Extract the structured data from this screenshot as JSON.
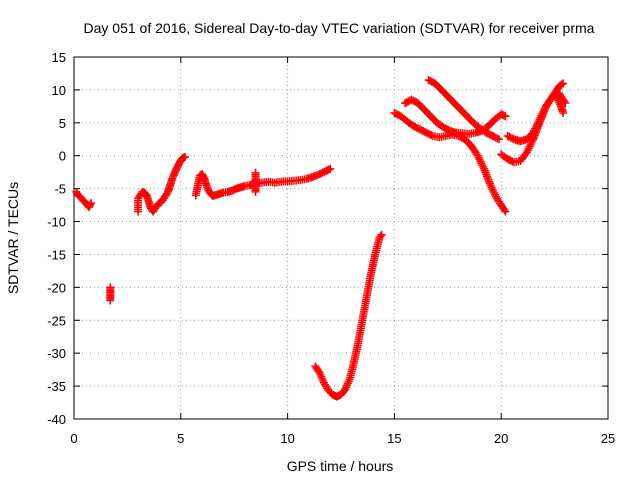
{
  "chart_data": {
    "type": "scatter",
    "title": "Day 051 of 2016, Sidereal Day-to-day VTEC variation (SDTVAR) for receiver prma",
    "xlabel": "GPS time / hours",
    "ylabel": "SDTVAR / TECUs",
    "xlim": [
      0,
      25
    ],
    "ylim": [
      -40,
      15
    ],
    "x_ticks": [
      0,
      5,
      10,
      15,
      20,
      25
    ],
    "y_ticks": [
      15,
      10,
      5,
      0,
      -5,
      -10,
      -15,
      -20,
      -25,
      -30,
      -35,
      -40
    ],
    "x_tick_labels": [
      "0",
      "5",
      "10",
      "15",
      "20",
      "25"
    ],
    "y_tick_labels": [
      "15",
      "10",
      "5",
      "0",
      "-5",
      "-10",
      "-15",
      "-20",
      "-25",
      "-30",
      "-35",
      "-40"
    ],
    "grid": true,
    "marker": "+",
    "color": "#ff0000",
    "series": [
      {
        "x": [
          0.1,
          0.2,
          0.3,
          0.4,
          0.5,
          0.6,
          0.7,
          0.8
        ],
        "y": [
          -5.5,
          -6.0,
          -6.3,
          -6.7,
          -7.0,
          -7.4,
          -7.8,
          -7.2
        ]
      },
      {
        "x": [
          1.7,
          1.7,
          1.7,
          1.7,
          1.7
        ],
        "y": [
          -20.0,
          -20.5,
          -21.0,
          -21.5,
          -22.0
        ]
      },
      {
        "x": [
          3.0,
          3.0,
          3.0,
          3.1,
          3.2,
          3.3,
          3.4,
          3.5,
          3.6,
          3.7,
          3.8,
          3.9,
          4.0,
          4.1,
          4.2,
          4.3,
          4.4,
          4.5,
          4.6,
          4.7,
          4.8,
          4.9,
          5.0,
          5.1,
          5.2
        ],
        "y": [
          -8.5,
          -7.5,
          -6.5,
          -6.0,
          -5.5,
          -5.6,
          -6.0,
          -7.0,
          -8.0,
          -8.5,
          -8.0,
          -7.5,
          -7.2,
          -7.0,
          -6.5,
          -6.0,
          -5.5,
          -4.5,
          -3.5,
          -2.7,
          -2.0,
          -1.3,
          -0.7,
          -0.3,
          -0.2
        ]
      },
      {
        "x": [
          5.7,
          5.8,
          5.9,
          6.0,
          6.1,
          6.2,
          6.3,
          6.4,
          6.5,
          6.6,
          6.8,
          7.0,
          7.2,
          7.4,
          7.6,
          7.8,
          8.0,
          8.2,
          8.4,
          8.6,
          8.8,
          9.0,
          9.2,
          9.4,
          9.6,
          9.8,
          10.0,
          10.3,
          10.6,
          10.9,
          11.2,
          11.5,
          11.8,
          12.0
        ],
        "y": [
          -6.0,
          -4.5,
          -3.0,
          -2.8,
          -3.5,
          -4.5,
          -5.3,
          -5.8,
          -6.1,
          -6.0,
          -5.8,
          -5.6,
          -5.5,
          -5.3,
          -5.0,
          -4.8,
          -4.6,
          -4.5,
          -4.3,
          -4.2,
          -4.1,
          -4.0,
          -4.0,
          -4.1,
          -4.0,
          -3.9,
          -3.9,
          -3.8,
          -3.7,
          -3.5,
          -3.2,
          -2.8,
          -2.3,
          -2.0
        ]
      },
      {
        "x": [
          8.5,
          8.5,
          8.5,
          8.5,
          8.5
        ],
        "y": [
          -2.6,
          -3.4,
          -4.2,
          -5.0,
          -5.5
        ]
      },
      {
        "x": [
          11.3,
          11.5,
          11.7,
          11.9,
          12.1,
          12.3,
          12.5,
          12.7,
          12.9,
          13.1,
          13.3,
          13.5,
          13.7,
          13.9,
          14.1,
          14.3,
          14.4
        ],
        "y": [
          -32.0,
          -33.0,
          -34.5,
          -35.6,
          -36.3,
          -36.6,
          -36.3,
          -35.5,
          -34.0,
          -31.5,
          -28.5,
          -25.0,
          -21.5,
          -18.0,
          -15.0,
          -12.5,
          -12.0
        ]
      },
      {
        "x": [
          15.0,
          15.3,
          15.6,
          15.9,
          16.2,
          16.5,
          16.8,
          17.1,
          17.4,
          17.7,
          18.0,
          18.3,
          18.6,
          18.9,
          19.2,
          19.5,
          19.8,
          20.0,
          20.2
        ],
        "y": [
          6.5,
          6.0,
          5.2,
          4.5,
          4.0,
          3.5,
          3.0,
          2.8,
          3.0,
          3.2,
          3.0,
          2.5,
          1.5,
          0.0,
          -2.0,
          -4.5,
          -6.5,
          -7.5,
          -8.5
        ]
      },
      {
        "x": [
          15.5,
          15.8,
          16.1,
          16.4,
          16.7,
          17.0,
          17.3,
          17.6,
          17.9,
          18.2,
          18.5,
          18.8,
          19.1,
          19.4,
          19.7,
          20.0,
          20.2
        ],
        "y": [
          8.0,
          8.5,
          8.0,
          7.0,
          6.0,
          5.0,
          4.3,
          3.8,
          3.5,
          3.4,
          3.3,
          3.5,
          3.8,
          4.5,
          5.5,
          6.3,
          6.0
        ]
      },
      {
        "x": [
          16.6,
          16.9,
          17.2,
          17.5,
          17.8,
          18.1,
          18.4,
          18.7,
          19.0,
          19.3,
          19.6,
          19.9
        ],
        "y": [
          11.5,
          11.0,
          10.0,
          9.0,
          8.0,
          7.0,
          6.0,
          5.0,
          4.2,
          3.5,
          3.0,
          2.5
        ]
      },
      {
        "x": [
          20.0,
          20.3,
          20.6,
          20.9,
          21.2,
          21.5,
          21.8,
          22.1,
          22.4,
          22.7,
          23.0
        ],
        "y": [
          0.2,
          -0.5,
          -1.0,
          -0.8,
          0.5,
          2.5,
          5.0,
          7.5,
          9.0,
          9.5,
          8.0
        ]
      },
      {
        "x": [
          20.3,
          20.6,
          20.9,
          21.2,
          21.5,
          21.8,
          22.1,
          22.4,
          22.7,
          22.9
        ],
        "y": [
          3.0,
          2.5,
          2.2,
          2.5,
          3.5,
          5.5,
          7.5,
          9.0,
          10.5,
          11.0
        ]
      },
      {
        "x": [
          22.5,
          22.8,
          22.9
        ],
        "y": [
          9.5,
          7.5,
          6.5
        ]
      }
    ]
  }
}
